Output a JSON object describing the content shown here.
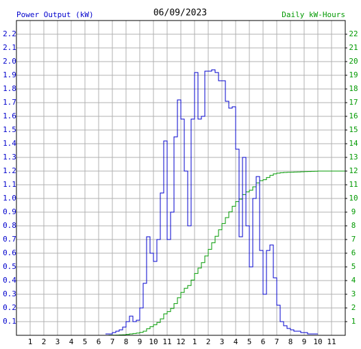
{
  "chart_data": {
    "type": "step",
    "title": "06/09/2023",
    "ylabel": "Power Output (kW)",
    "y2label": "Daily kW-Hours",
    "grid": true,
    "xlim": [
      0,
      24
    ],
    "xticks": [
      1,
      2,
      3,
      4,
      5,
      6,
      7,
      8,
      9,
      10,
      11,
      12,
      {
        "value": 13,
        "label": "1"
      },
      {
        "value": 14,
        "label": "2"
      },
      {
        "value": 15,
        "label": "3"
      },
      {
        "value": 16,
        "label": "4"
      },
      {
        "value": 17,
        "label": "5"
      },
      {
        "value": 18,
        "label": "6"
      },
      {
        "value": 19,
        "label": "7"
      },
      {
        "value": 20,
        "label": "8"
      },
      {
        "value": 21,
        "label": "9"
      },
      {
        "value": 22,
        "label": "10"
      },
      {
        "value": 23,
        "label": "11"
      }
    ],
    "ylim": [
      0,
      2.3
    ],
    "yticks": [
      0.1,
      0.2,
      0.3,
      0.4,
      0.5,
      0.6,
      0.7,
      0.8,
      0.9,
      {
        "value": 1,
        "label": "1.0"
      },
      1.1,
      1.2,
      1.3,
      1.4,
      1.5,
      1.6,
      1.7,
      1.8,
      1.9,
      {
        "value": 2,
        "label": "2.0"
      },
      2.1,
      2.2
    ],
    "y2lim": [
      0,
      23
    ],
    "y2ticks": [
      1,
      2,
      3,
      4,
      5,
      6,
      7,
      8,
      9,
      10,
      11,
      12,
      13,
      14,
      15,
      16,
      17,
      18,
      19,
      20,
      21,
      22
    ],
    "x": [
      6.5,
      6.75,
      7,
      7.25,
      7.5,
      7.75,
      8,
      8.25,
      8.5,
      8.75,
      9,
      9.25,
      9.5,
      9.75,
      10,
      10.25,
      10.5,
      10.75,
      11,
      11.25,
      11.5,
      11.75,
      12,
      12.25,
      12.5,
      12.75,
      13,
      13.25,
      13.5,
      13.75,
      14,
      14.25,
      14.5,
      14.75,
      15,
      15.25,
      15.5,
      15.75,
      16,
      16.25,
      16.5,
      16.75,
      17,
      17.25,
      17.5,
      17.75,
      18,
      18.25,
      18.5,
      18.75,
      19,
      19.25,
      19.5,
      19.75,
      20,
      20.25,
      20.5,
      20.75,
      21,
      21.25,
      21.5,
      21.75,
      22,
      22.25,
      22.5,
      22.75,
      23,
      23.25,
      23.5,
      23.75,
      24
    ],
    "series": [
      {
        "color": "#0000cc",
        "values": [
          0.01,
          0.01,
          0.02,
          0.03,
          0.04,
          0.06,
          0.1,
          0.14,
          0.1,
          0.11,
          0.2,
          0.38,
          0.72,
          0.6,
          0.54,
          0.7,
          1.04,
          1.42,
          0.7,
          0.9,
          1.45,
          1.72,
          1.58,
          1.2,
          0.8,
          1.58,
          1.92,
          1.58,
          1.6,
          1.93,
          1.93,
          1.94,
          1.92,
          1.86,
          1.86,
          1.71,
          1.66,
          1.67,
          1.36,
          0.72,
          1.3,
          0.8,
          0.5,
          1.0,
          1.16,
          0.62,
          0.3,
          0.62,
          0.66,
          0.42,
          0.22,
          0.1,
          0.07,
          0.05,
          0.04,
          0.03,
          0.03,
          0.02,
          0.02,
          0.01,
          0.01,
          0.01,
          0.01,
          null,
          null,
          null,
          null,
          null,
          null,
          null,
          null
        ]
      },
      {
        "color": "#009900",
        "axis": "y2",
        "values": [
          0.0,
          0.01,
          0.01,
          0.02,
          0.03,
          0.04,
          0.07,
          0.1,
          0.13,
          0.16,
          0.21,
          0.3,
          0.48,
          0.63,
          0.77,
          0.94,
          1.2,
          1.56,
          1.73,
          1.96,
          2.32,
          2.75,
          3.14,
          3.44,
          3.64,
          4.04,
          4.52,
          4.91,
          5.31,
          5.8,
          6.28,
          6.76,
          7.24,
          7.71,
          8.17,
          8.6,
          9.02,
          9.43,
          9.77,
          9.95,
          10.28,
          10.48,
          10.6,
          10.85,
          11.14,
          11.3,
          11.37,
          11.53,
          11.69,
          11.8,
          11.85,
          11.88,
          11.9,
          11.91,
          11.92,
          11.93,
          11.94,
          11.95,
          11.96,
          11.97,
          11.98,
          11.99,
          12.0,
          12.0,
          12.0,
          12.0,
          12.0,
          12.0,
          12.0,
          12.0,
          12.0
        ]
      }
    ]
  }
}
